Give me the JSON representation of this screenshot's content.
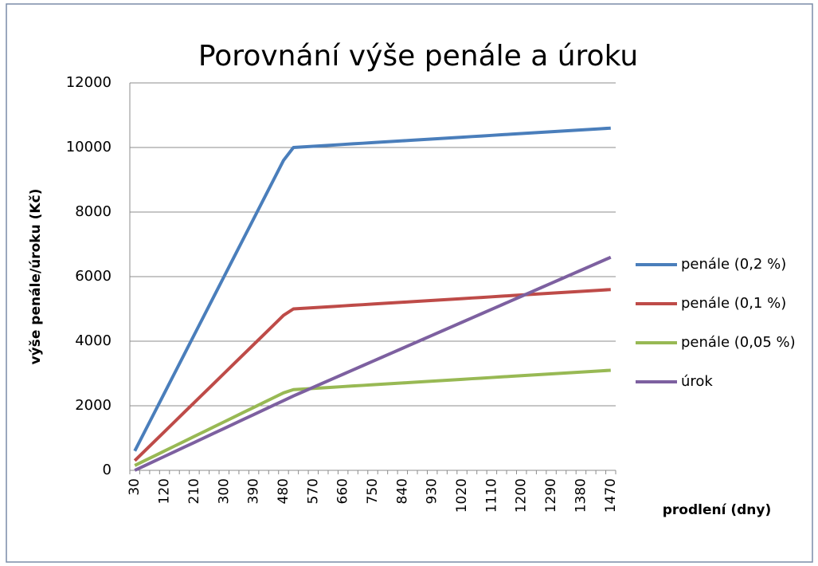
{
  "chart_data": {
    "type": "line",
    "title": "Porovnání výše penále a úroku",
    "y_label": "výše penále/úroku (Kč)",
    "x_label": "prodlení (dny)",
    "categories": [
      30,
      null,
      null,
      120,
      null,
      null,
      210,
      null,
      null,
      300,
      null,
      null,
      390,
      null,
      null,
      480,
      null,
      null,
      570,
      null,
      null,
      660,
      null,
      null,
      750,
      null,
      null,
      840,
      null,
      null,
      930,
      null,
      null,
      1020,
      null,
      null,
      1110,
      null,
      null,
      1200,
      null,
      null,
      1290,
      null,
      null,
      1380,
      null,
      null,
      1470
    ],
    "series": [
      {
        "name": "penále (0,2 %)",
        "color": "#4a7ebb",
        "values": [
          600,
          1200,
          1800,
          2400,
          3000,
          3600,
          4200,
          4800,
          5400,
          6000,
          6600,
          7200,
          7800,
          8400,
          9000,
          9600,
          10000,
          10019,
          10038,
          10056,
          10075,
          10094,
          10113,
          10131,
          10150,
          10169,
          10188,
          10206,
          10225,
          10244,
          10263,
          10281,
          10300,
          10319,
          10338,
          10356,
          10375,
          10394,
          10413,
          10431,
          10450,
          10469,
          10488,
          10506,
          10525,
          10544,
          10563,
          10581,
          10600
        ]
      },
      {
        "name": "penále (0,1 %)",
        "color": "#be4b48",
        "values": [
          300,
          600,
          900,
          1200,
          1500,
          1800,
          2100,
          2400,
          2700,
          3000,
          3300,
          3600,
          3900,
          4200,
          4500,
          4800,
          5000,
          5019,
          5038,
          5056,
          5075,
          5094,
          5113,
          5131,
          5150,
          5169,
          5188,
          5206,
          5225,
          5244,
          5263,
          5281,
          5300,
          5319,
          5338,
          5356,
          5375,
          5394,
          5413,
          5431,
          5450,
          5469,
          5488,
          5506,
          5525,
          5544,
          5563,
          5581,
          5600
        ]
      },
      {
        "name": "penále (0,05 %)",
        "color": "#98b954",
        "values": [
          150,
          300,
          450,
          600,
          750,
          900,
          1050,
          1200,
          1350,
          1500,
          1650,
          1800,
          1950,
          2100,
          2250,
          2400,
          2500,
          2519,
          2538,
          2556,
          2575,
          2594,
          2613,
          2631,
          2650,
          2669,
          2688,
          2706,
          2725,
          2744,
          2763,
          2781,
          2800,
          2819,
          2838,
          2856,
          2875,
          2894,
          2913,
          2931,
          2950,
          2969,
          2988,
          3006,
          3025,
          3044,
          3063,
          3081,
          3100
        ]
      },
      {
        "name": "úrok",
        "color": "#7d60a0",
        "values": [
          0,
          144,
          288,
          432,
          576,
          720,
          864,
          1008,
          1152,
          1296,
          1440,
          1584,
          1728,
          1872,
          2016,
          2160,
          2304,
          2438,
          2573,
          2707,
          2841,
          2975,
          3110,
          3244,
          3378,
          3512,
          3647,
          3781,
          3915,
          4049,
          4184,
          4318,
          4452,
          4586,
          4721,
          4855,
          4989,
          5123,
          5258,
          5392,
          5526,
          5660,
          5795,
          5929,
          6063,
          6197,
          6332,
          6466,
          6600
        ]
      }
    ],
    "ylim": [
      0,
      12000
    ],
    "yticks": [
      0,
      2000,
      4000,
      6000,
      8000,
      10000,
      12000
    ],
    "grid": true,
    "legend": "right"
  }
}
